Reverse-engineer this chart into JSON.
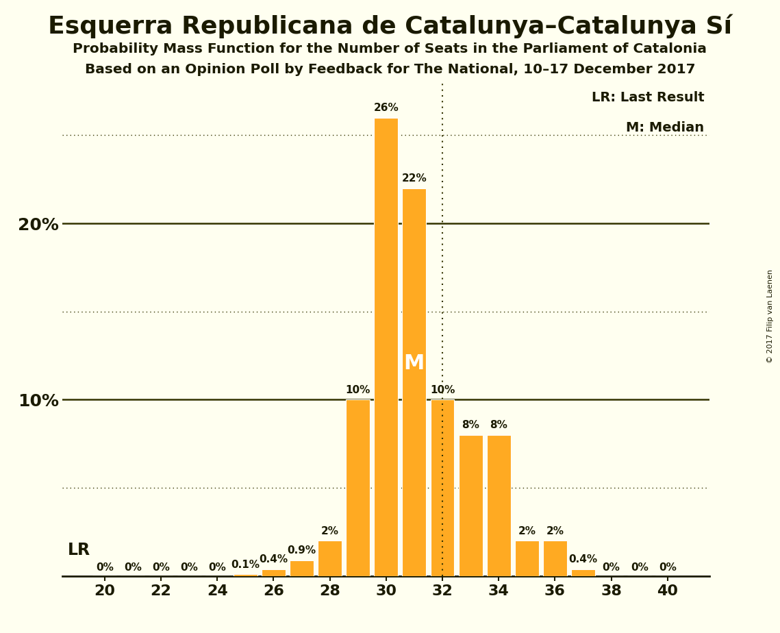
{
  "title": "Esquerra Republicana de Catalunya–Catalunya Sí",
  "subtitle1": "Probability Mass Function for the Number of Seats in the Parliament of Catalonia",
  "subtitle2": "Based on an Opinion Poll by Feedback for The National, 10–17 December 2017",
  "copyright": "© 2017 Filip van Laenen",
  "seats": [
    20,
    21,
    22,
    23,
    24,
    25,
    26,
    27,
    28,
    29,
    30,
    31,
    32,
    33,
    34,
    35,
    36,
    37,
    38,
    39,
    40
  ],
  "probabilities": [
    0.0,
    0.0,
    0.0,
    0.0,
    0.0,
    0.1,
    0.4,
    0.9,
    2.0,
    10.0,
    26.0,
    22.0,
    10.0,
    8.0,
    8.0,
    2.0,
    2.0,
    0.4,
    0.0,
    0.0,
    0.0
  ],
  "bar_color": "#FFAA22",
  "background_color": "#FFFFF0",
  "text_color": "#1a1a00",
  "lr_seat": 32,
  "median_seat": 31,
  "ylim": [
    0,
    28
  ],
  "dotted_lines": [
    5,
    15,
    25
  ],
  "solid_lines": [
    10,
    20
  ],
  "grid_color": "#333300",
  "legend_lr": "LR: Last Result",
  "legend_m": "M: Median",
  "bar_label_fontsize": 11,
  "tick_fontsize": 16,
  "ytick_fontsize": 18
}
